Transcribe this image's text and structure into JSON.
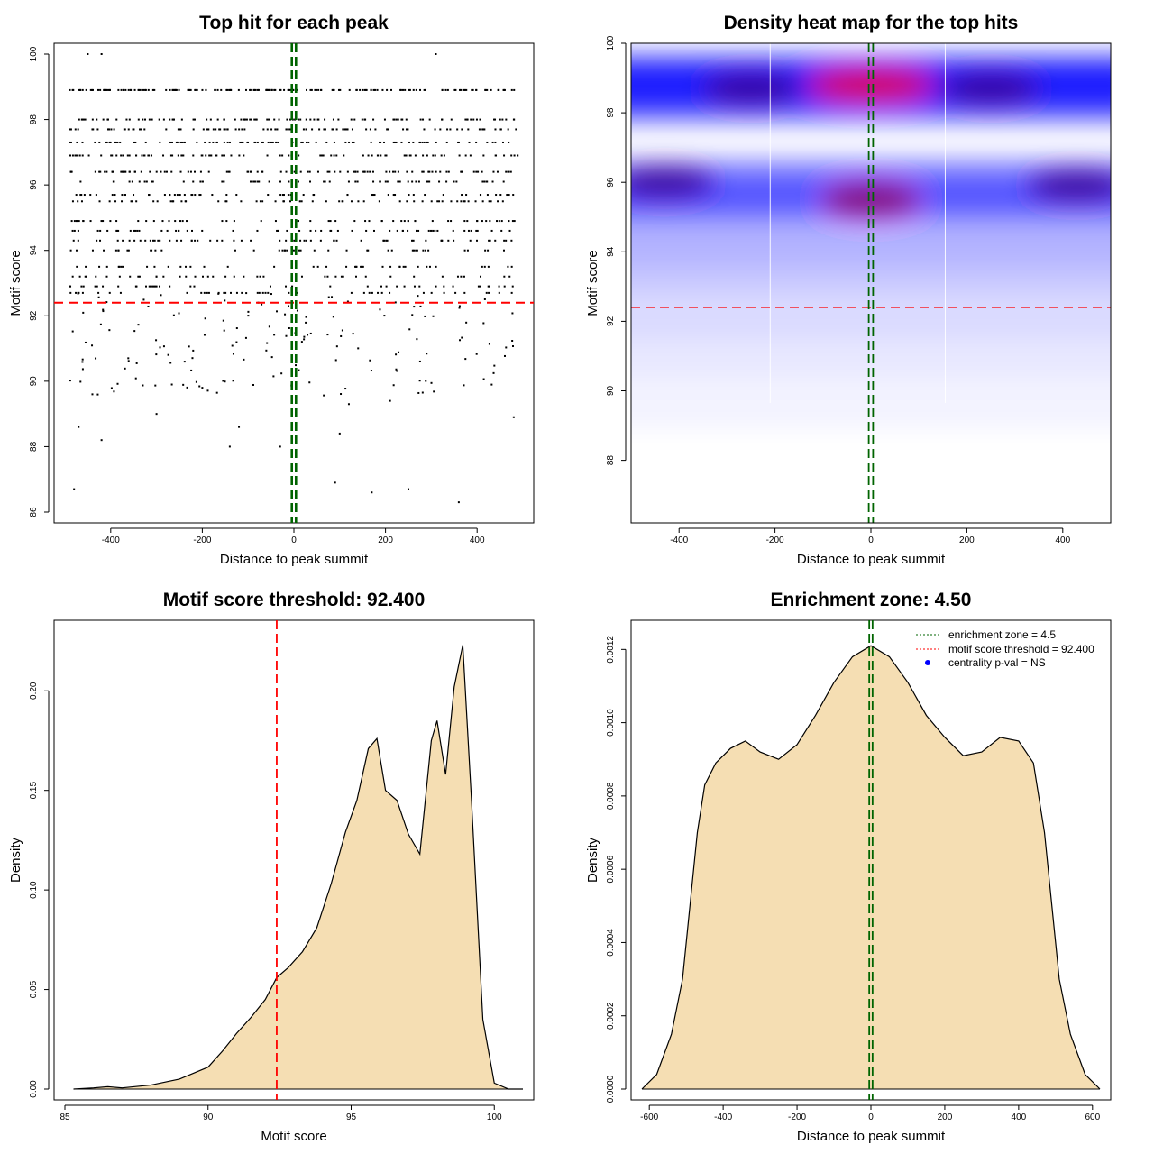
{
  "chart_data": [
    {
      "type": "scatter",
      "title": "Top hit for each peak",
      "xlabel": "Distance to peak summit",
      "ylabel": "Motif score",
      "xlim": [
        -500,
        500
      ],
      "ylim": [
        86,
        100
      ],
      "x_ticks": [
        -400,
        -200,
        0,
        200,
        400
      ],
      "y_ticks": [
        86,
        88,
        90,
        92,
        94,
        96,
        98,
        100
      ],
      "hlines": [
        {
          "value": 92.4,
          "color": "#ff0000",
          "style": "dashed"
        }
      ],
      "vlines": [
        {
          "value": -4.5,
          "color": "#006400",
          "style": "dashed"
        },
        {
          "value": 4.5,
          "color": "#006400",
          "style": "dashed"
        }
      ],
      "point_color": "#000000",
      "dense_score_levels": [
        98.9,
        98.0,
        97.7,
        97.3,
        96.9,
        96.4,
        96.1,
        95.7,
        95.5,
        94.9,
        94.6,
        94.3,
        94.0,
        93.5,
        93.2,
        92.9,
        92.7
      ],
      "points": [
        [
          -450,
          100
        ],
        [
          -420,
          100
        ],
        [
          310,
          100
        ],
        [
          -480,
          86.7
        ],
        [
          360,
          86.3
        ],
        [
          -470,
          88.6
        ],
        [
          -140,
          88.0
        ],
        [
          -30,
          88.0
        ],
        [
          -120,
          88.6
        ],
        [
          100,
          88.4
        ],
        [
          250,
          86.7
        ],
        [
          170,
          86.6
        ],
        [
          90,
          86.9
        ],
        [
          -420,
          88.2
        ],
        [
          480,
          88.9
        ],
        [
          -300,
          89.0
        ],
        [
          120,
          89.3
        ],
        [
          -440,
          89.6
        ],
        [
          210,
          89.4
        ],
        [
          -200,
          89.8
        ]
      ]
    },
    {
      "type": "heatmap",
      "title": "Density heat map for the top hits",
      "xlabel": "Distance to peak summit",
      "ylabel": "Motif score",
      "xlim": [
        -500,
        500
      ],
      "ylim": [
        86.2,
        100
      ],
      "x_ticks": [
        -400,
        -200,
        0,
        200,
        400
      ],
      "y_ticks": [
        88,
        90,
        92,
        94,
        96,
        98,
        100
      ],
      "hlines": [
        {
          "value": 92.4,
          "color": "#ff0000",
          "style": "dashed"
        }
      ],
      "vlines": [
        {
          "value": -4.5,
          "color": "#006400",
          "style": "dashed"
        },
        {
          "value": 4.5,
          "color": "#006400",
          "style": "dashed"
        }
      ],
      "color_scale": [
        "#ffffff",
        "#0000ff",
        "#ff0000"
      ],
      "hotspots": [
        {
          "x": 0,
          "y": 98.8,
          "intensity": 1.0
        },
        {
          "x": 0,
          "y": 95.5,
          "intensity": 0.75
        },
        {
          "x": -430,
          "y": 96.0,
          "intensity": 0.6
        },
        {
          "x": 430,
          "y": 95.9,
          "intensity": 0.6
        },
        {
          "x": -250,
          "y": 98.7,
          "intensity": 0.6
        },
        {
          "x": 250,
          "y": 98.7,
          "intensity": 0.6
        }
      ]
    },
    {
      "type": "area",
      "title": "Motif score threshold: 92.400",
      "xlabel": "Motif score",
      "ylabel": "Density",
      "xlim": [
        85,
        101
      ],
      "ylim": [
        0,
        0.23
      ],
      "x_ticks": [
        85,
        90,
        95,
        100
      ],
      "y_ticks": [
        0.0,
        0.05,
        0.1,
        0.15,
        0.2
      ],
      "y_tick_labels": [
        "0.00",
        "0.05",
        "0.10",
        "0.15",
        "0.20"
      ],
      "fill_color": "#f5deb3",
      "vlines": [
        {
          "value": 92.4,
          "color": "#ff0000",
          "style": "dashed"
        }
      ],
      "x": [
        85.3,
        86.0,
        86.5,
        87.0,
        88.0,
        89.0,
        89.5,
        90.0,
        90.5,
        91.0,
        91.5,
        92.0,
        92.4,
        92.8,
        93.3,
        93.8,
        94.3,
        94.8,
        95.2,
        95.6,
        95.9,
        96.2,
        96.6,
        97.0,
        97.4,
        97.8,
        98.0,
        98.3,
        98.6,
        98.9,
        99.2,
        99.6,
        100.0,
        100.5,
        101.0
      ],
      "y": [
        0.0,
        0.0006,
        0.0012,
        0.0006,
        0.002,
        0.005,
        0.008,
        0.011,
        0.019,
        0.028,
        0.036,
        0.045,
        0.056,
        0.061,
        0.069,
        0.081,
        0.103,
        0.129,
        0.145,
        0.171,
        0.176,
        0.15,
        0.145,
        0.128,
        0.118,
        0.175,
        0.185,
        0.158,
        0.202,
        0.223,
        0.146,
        0.035,
        0.003,
        0.0,
        0.0
      ]
    },
    {
      "type": "area",
      "title": "Enrichment zone: 4.50",
      "xlabel": "Distance to peak summit",
      "ylabel": "Density",
      "xlim": [
        -620,
        620
      ],
      "ylim": [
        0,
        0.00125
      ],
      "x_ticks": [
        -600,
        -400,
        -200,
        0,
        200,
        400,
        600
      ],
      "y_ticks": [
        0,
        0.0002,
        0.0004,
        0.0006,
        0.0008,
        0.001,
        0.0012
      ],
      "y_tick_labels": [
        "0.0000",
        "0.0002",
        "0.0004",
        "0.0006",
        "0.0008",
        "0.0010",
        "0.0012"
      ],
      "fill_color": "#f5deb3",
      "vlines": [
        {
          "value": -4.5,
          "color": "#006400",
          "style": "dashed"
        },
        {
          "value": 4.5,
          "color": "#006400",
          "style": "dashed"
        }
      ],
      "legend": {
        "position": "top-right",
        "entries": [
          {
            "label": "enrichment zone = 4.5",
            "color": "#006400",
            "marker": "dotted-line"
          },
          {
            "label": "motif score threshold = 92.400",
            "color": "#ff0000",
            "marker": "dotted-line"
          },
          {
            "label": "centrality p-val = NS",
            "color": "#0000ff",
            "marker": "dot"
          }
        ]
      },
      "x": [
        -620,
        -580,
        -540,
        -510,
        -490,
        -470,
        -450,
        -420,
        -380,
        -340,
        -300,
        -250,
        -200,
        -150,
        -100,
        -50,
        0,
        50,
        100,
        150,
        200,
        250,
        300,
        350,
        400,
        440,
        470,
        490,
        510,
        540,
        580,
        620
      ],
      "y": [
        0.0,
        4e-05,
        0.00015,
        0.0003,
        0.0005,
        0.0007,
        0.00083,
        0.00089,
        0.00093,
        0.00095,
        0.00092,
        0.0009,
        0.00094,
        0.00102,
        0.00111,
        0.00118,
        0.00121,
        0.00118,
        0.00111,
        0.00102,
        0.00096,
        0.00091,
        0.00092,
        0.00096,
        0.00095,
        0.00089,
        0.0007,
        0.0005,
        0.0003,
        0.00015,
        4e-05,
        0.0
      ]
    }
  ]
}
